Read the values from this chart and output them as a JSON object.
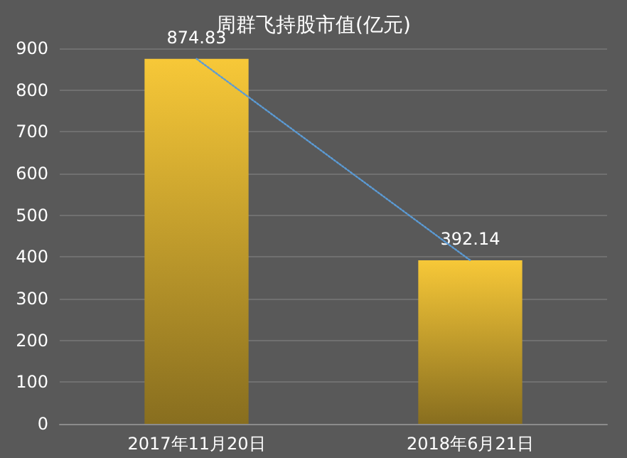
{
  "chart_data": {
    "type": "bar",
    "title": "周群飞持股市值(亿元)",
    "categories": [
      "2017年11月20日",
      "2018年6月21日"
    ],
    "series": [
      {
        "color": "#f7c838",
        "values": [
          874.83,
          392.14
        ],
        "value_labels": [
          "874.83",
          "392.14"
        ]
      },
      {
        "type": "line",
        "color": "#5b9bd5",
        "values": [
          875,
          392
        ],
        "line_style": "dotted",
        "marker": "none"
      }
    ],
    "ylim": [
      0,
      900
    ],
    "yticks": [
      0,
      100,
      200,
      300,
      400,
      500,
      600,
      700,
      800,
      900
    ],
    "grid": "y"
  }
}
